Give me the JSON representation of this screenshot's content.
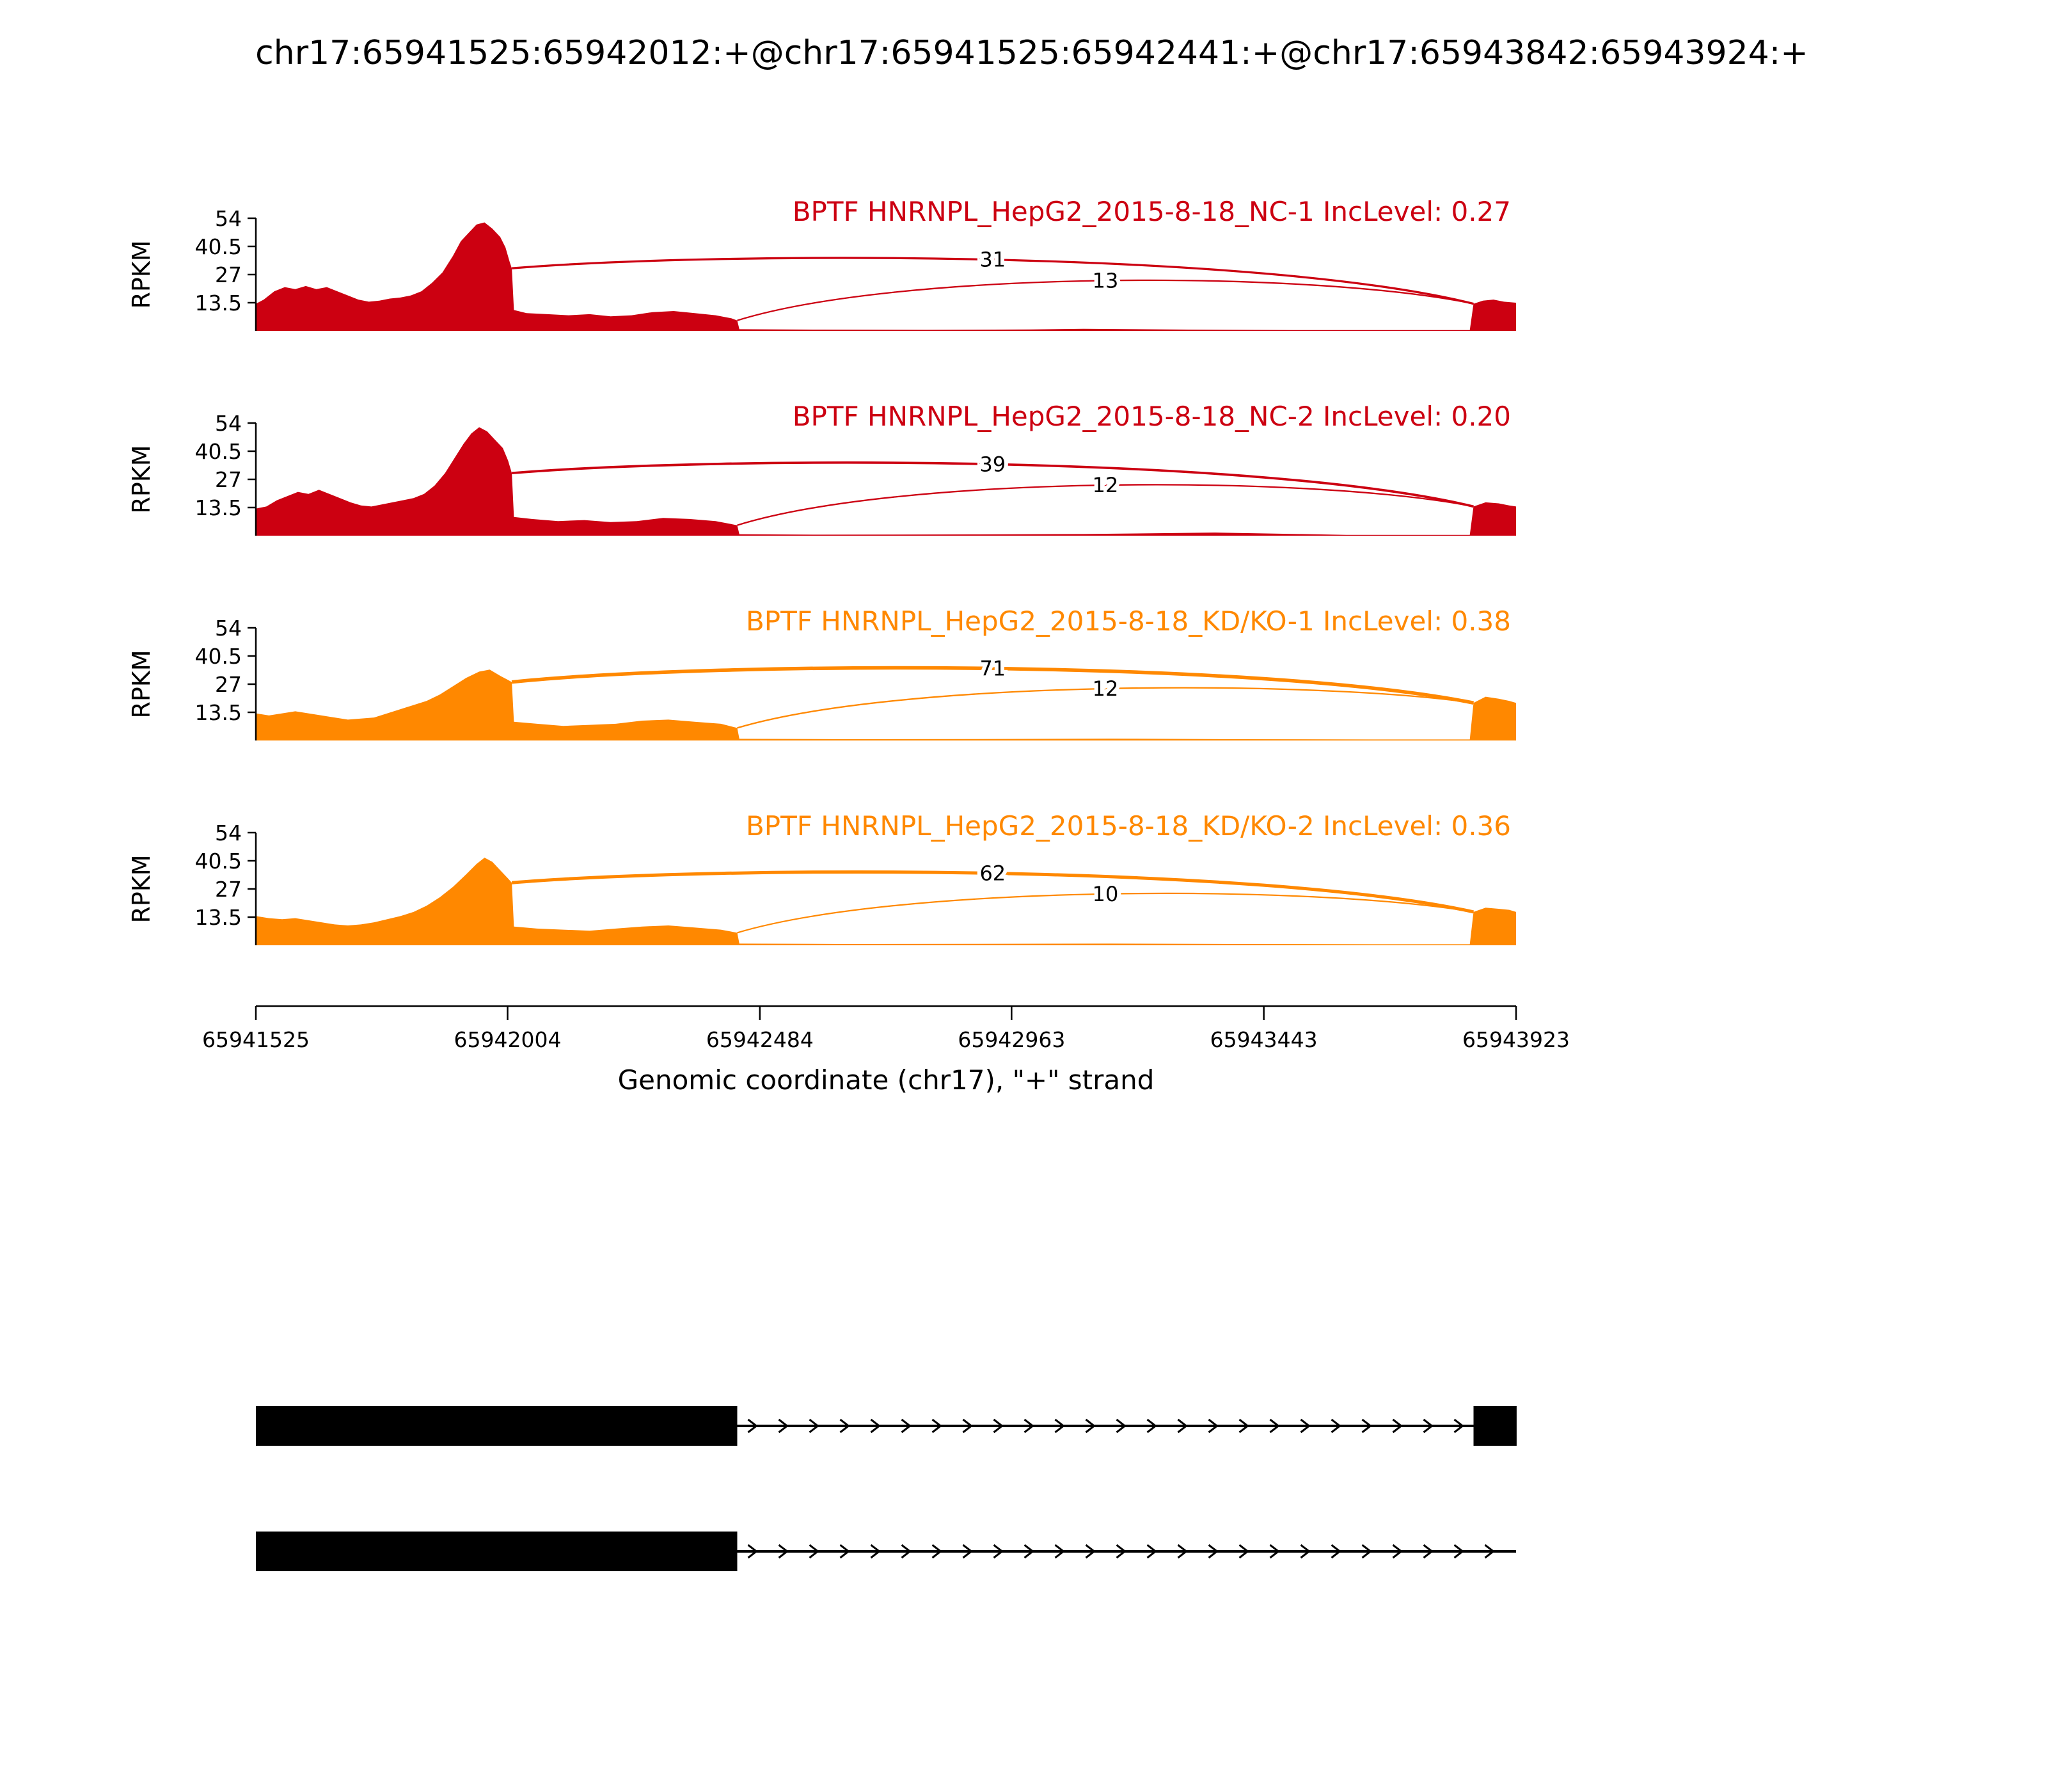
{
  "title": "chr17:65941525:65942012:+@chr17:65941525:65942441:+@chr17:65943842:65943924:+",
  "colors": {
    "group1_nc": "#CC0011",
    "group2_kd": "#FF8800",
    "transcript": "#000000"
  },
  "axis": {
    "ylabel": "RPKM",
    "yticks": [
      13.5,
      27,
      40.5,
      54
    ],
    "ymax": 54,
    "xlabel": "Genomic coordinate (chr17), \"+\" strand",
    "xticks": [
      65941525,
      65942004,
      65942484,
      65942963,
      65943443,
      65943923
    ],
    "xmin": 65941525,
    "xmax": 65943923
  },
  "chart_data": {
    "type": "area",
    "subtype": "sashimi-plot",
    "chromosome": "chr17",
    "strand": "+",
    "event": {
      "upstream_exon_short": [
        65941525,
        65942012
      ],
      "upstream_exon_long": [
        65941525,
        65942441
      ],
      "downstream_exon": [
        65943842,
        65943924
      ]
    },
    "tracks": [
      {
        "label": "BPTF HNRNPL_HepG2_2015-8-18_NC-1 IncLevel: 0.27",
        "sample": "BPTF HNRNPL_HepG2_2015-8-18_NC-1",
        "inc_level": 0.27,
        "group": "NC",
        "color": "#CC0011",
        "junctions": [
          {
            "from": 65942012,
            "to": 65943842,
            "count": 31
          },
          {
            "from": 65942441,
            "to": 65943842,
            "count": 13
          }
        ],
        "coverage": [
          [
            65941525,
            13
          ],
          [
            65941540,
            15
          ],
          [
            65941560,
            19
          ],
          [
            65941580,
            21
          ],
          [
            65941600,
            20
          ],
          [
            65941620,
            21.5
          ],
          [
            65941640,
            20
          ],
          [
            65941660,
            21
          ],
          [
            65941680,
            19
          ],
          [
            65941700,
            17
          ],
          [
            65941720,
            15
          ],
          [
            65941740,
            14
          ],
          [
            65941760,
            14.5
          ],
          [
            65941780,
            15.5
          ],
          [
            65941800,
            16
          ],
          [
            65941820,
            17
          ],
          [
            65941840,
            19
          ],
          [
            65941860,
            23
          ],
          [
            65941880,
            28
          ],
          [
            65941900,
            36
          ],
          [
            65941915,
            43
          ],
          [
            65941930,
            47
          ],
          [
            65941945,
            51
          ],
          [
            65941960,
            52
          ],
          [
            65941975,
            49
          ],
          [
            65941990,
            45
          ],
          [
            65942000,
            40
          ],
          [
            65942008,
            33
          ],
          [
            65942012,
            30
          ],
          [
            65942016,
            10
          ],
          [
            65942040,
            8.5
          ],
          [
            65942080,
            8
          ],
          [
            65942120,
            7.5
          ],
          [
            65942160,
            8
          ],
          [
            65942200,
            7
          ],
          [
            65942240,
            7.5
          ],
          [
            65942280,
            9
          ],
          [
            65942320,
            9.5
          ],
          [
            65942360,
            8.5
          ],
          [
            65942400,
            7.5
          ],
          [
            65942430,
            6
          ],
          [
            65942441,
            5
          ],
          [
            65942445,
            0.8
          ],
          [
            65942600,
            0.6
          ],
          [
            65942800,
            0.5
          ],
          [
            65943000,
            0.7
          ],
          [
            65943100,
            1
          ],
          [
            65943300,
            0.6
          ],
          [
            65943500,
            0.4
          ],
          [
            65943700,
            0.4
          ],
          [
            65943835,
            0.4
          ],
          [
            65943842,
            13
          ],
          [
            65943860,
            14.5
          ],
          [
            65943880,
            15
          ],
          [
            65943900,
            14
          ],
          [
            65943924,
            13.5
          ]
        ]
      },
      {
        "label": "BPTF HNRNPL_HepG2_2015-8-18_NC-2 IncLevel: 0.20",
        "sample": "BPTF HNRNPL_HepG2_2015-8-18_NC-2",
        "inc_level": 0.2,
        "group": "NC",
        "color": "#CC0011",
        "junctions": [
          {
            "from": 65942012,
            "to": 65943842,
            "count": 39
          },
          {
            "from": 65942441,
            "to": 65943842,
            "count": 12
          }
        ],
        "coverage": [
          [
            65941525,
            13
          ],
          [
            65941545,
            14
          ],
          [
            65941565,
            17
          ],
          [
            65941585,
            19
          ],
          [
            65941605,
            21
          ],
          [
            65941625,
            20
          ],
          [
            65941645,
            22
          ],
          [
            65941665,
            20
          ],
          [
            65941685,
            18
          ],
          [
            65941705,
            16
          ],
          [
            65941725,
            14.5
          ],
          [
            65941745,
            14
          ],
          [
            65941765,
            15
          ],
          [
            65941785,
            16
          ],
          [
            65941805,
            17
          ],
          [
            65941825,
            18
          ],
          [
            65941845,
            20
          ],
          [
            65941865,
            24
          ],
          [
            65941885,
            30
          ],
          [
            65941905,
            38
          ],
          [
            65941920,
            44
          ],
          [
            65941935,
            49
          ],
          [
            65941950,
            52
          ],
          [
            65941965,
            50
          ],
          [
            65941980,
            46
          ],
          [
            65941995,
            42
          ],
          [
            65942005,
            36
          ],
          [
            65942012,
            30
          ],
          [
            65942016,
            9
          ],
          [
            65942050,
            8
          ],
          [
            65942100,
            7
          ],
          [
            65942150,
            7.5
          ],
          [
            65942200,
            6.5
          ],
          [
            65942250,
            7
          ],
          [
            65942300,
            8.5
          ],
          [
            65942350,
            8
          ],
          [
            65942400,
            7
          ],
          [
            65942441,
            5
          ],
          [
            65942445,
            0.7
          ],
          [
            65942600,
            0.5
          ],
          [
            65942900,
            0.6
          ],
          [
            65943100,
            0.8
          ],
          [
            65943350,
            1.5
          ],
          [
            65943420,
            1.2
          ],
          [
            65943600,
            0.4
          ],
          [
            65943835,
            0.4
          ],
          [
            65943842,
            14
          ],
          [
            65943865,
            16
          ],
          [
            65943890,
            15.5
          ],
          [
            65943910,
            14.5
          ],
          [
            65943924,
            14
          ]
        ]
      },
      {
        "label": "BPTF HNRNPL_HepG2_2015-8-18_KD/KO-1 IncLevel: 0.38",
        "sample": "BPTF HNRNPL_HepG2_2015-8-18_KD/KO-1",
        "inc_level": 0.38,
        "group": "KD/KO",
        "color": "#FF8800",
        "junctions": [
          {
            "from": 65942012,
            "to": 65943842,
            "count": 71
          },
          {
            "from": 65942441,
            "to": 65943842,
            "count": 12
          }
        ],
        "coverage": [
          [
            65941525,
            13
          ],
          [
            65941550,
            12
          ],
          [
            65941575,
            13
          ],
          [
            65941600,
            14
          ],
          [
            65941625,
            13
          ],
          [
            65941650,
            12
          ],
          [
            65941675,
            11
          ],
          [
            65941700,
            10
          ],
          [
            65941725,
            10.5
          ],
          [
            65941750,
            11
          ],
          [
            65941775,
            13
          ],
          [
            65941800,
            15
          ],
          [
            65941825,
            17
          ],
          [
            65941850,
            19
          ],
          [
            65941875,
            22
          ],
          [
            65941900,
            26
          ],
          [
            65941925,
            30
          ],
          [
            65941950,
            33
          ],
          [
            65941970,
            34
          ],
          [
            65941990,
            31
          ],
          [
            65942005,
            29
          ],
          [
            65942012,
            28
          ],
          [
            65942016,
            9
          ],
          [
            65942060,
            8
          ],
          [
            65942110,
            7
          ],
          [
            65942160,
            7.5
          ],
          [
            65942210,
            8
          ],
          [
            65942260,
            9.5
          ],
          [
            65942310,
            10
          ],
          [
            65942360,
            9
          ],
          [
            65942410,
            8
          ],
          [
            65942441,
            6
          ],
          [
            65942445,
            0.8
          ],
          [
            65942650,
            0.6
          ],
          [
            65942900,
            0.7
          ],
          [
            65943150,
            0.9
          ],
          [
            65943400,
            0.6
          ],
          [
            65943650,
            0.5
          ],
          [
            65943835,
            0.5
          ],
          [
            65943842,
            18
          ],
          [
            65943865,
            21
          ],
          [
            65943890,
            20
          ],
          [
            65943910,
            19
          ],
          [
            65943924,
            18
          ]
        ]
      },
      {
        "label": "BPTF HNRNPL_HepG2_2015-8-18_KD/KO-2 IncLevel: 0.36",
        "sample": "BPTF HNRNPL_HepG2_2015-8-18_KD/KO-2",
        "inc_level": 0.36,
        "group": "KD/KO",
        "color": "#FF8800",
        "junctions": [
          {
            "from": 65942012,
            "to": 65943842,
            "count": 62
          },
          {
            "from": 65942441,
            "to": 65943842,
            "count": 10
          }
        ],
        "coverage": [
          [
            65941525,
            14
          ],
          [
            65941550,
            13
          ],
          [
            65941575,
            12.5
          ],
          [
            65941600,
            13
          ],
          [
            65941625,
            12
          ],
          [
            65941650,
            11
          ],
          [
            65941675,
            10
          ],
          [
            65941700,
            9.5
          ],
          [
            65941725,
            10
          ],
          [
            65941750,
            11
          ],
          [
            65941775,
            12.5
          ],
          [
            65941800,
            14
          ],
          [
            65941825,
            16
          ],
          [
            65941850,
            19
          ],
          [
            65941875,
            23
          ],
          [
            65941900,
            28
          ],
          [
            65941925,
            34
          ],
          [
            65941945,
            39
          ],
          [
            65941960,
            42
          ],
          [
            65941975,
            40
          ],
          [
            65941990,
            36
          ],
          [
            65942005,
            32
          ],
          [
            65942012,
            30
          ],
          [
            65942016,
            9
          ],
          [
            65942060,
            8
          ],
          [
            65942110,
            7.5
          ],
          [
            65942160,
            7
          ],
          [
            65942210,
            8
          ],
          [
            65942260,
            9
          ],
          [
            65942310,
            9.5
          ],
          [
            65942360,
            8.5
          ],
          [
            65942410,
            7.5
          ],
          [
            65942441,
            6
          ],
          [
            65942445,
            0.8
          ],
          [
            65942650,
            0.6
          ],
          [
            65942900,
            0.7
          ],
          [
            65943150,
            0.8
          ],
          [
            65943400,
            0.6
          ],
          [
            65943650,
            0.5
          ],
          [
            65943835,
            0.5
          ],
          [
            65943842,
            16
          ],
          [
            65943865,
            18
          ],
          [
            65943890,
            17.5
          ],
          [
            65943910,
            17
          ],
          [
            65943924,
            16
          ]
        ]
      }
    ],
    "transcripts": [
      {
        "exons": [
          [
            65941525,
            65942441
          ],
          [
            65943842,
            65943924
          ]
        ],
        "line_to": 65943842
      },
      {
        "exons": [
          [
            65941525,
            65942441
          ]
        ],
        "line_to": 65943923
      }
    ]
  }
}
